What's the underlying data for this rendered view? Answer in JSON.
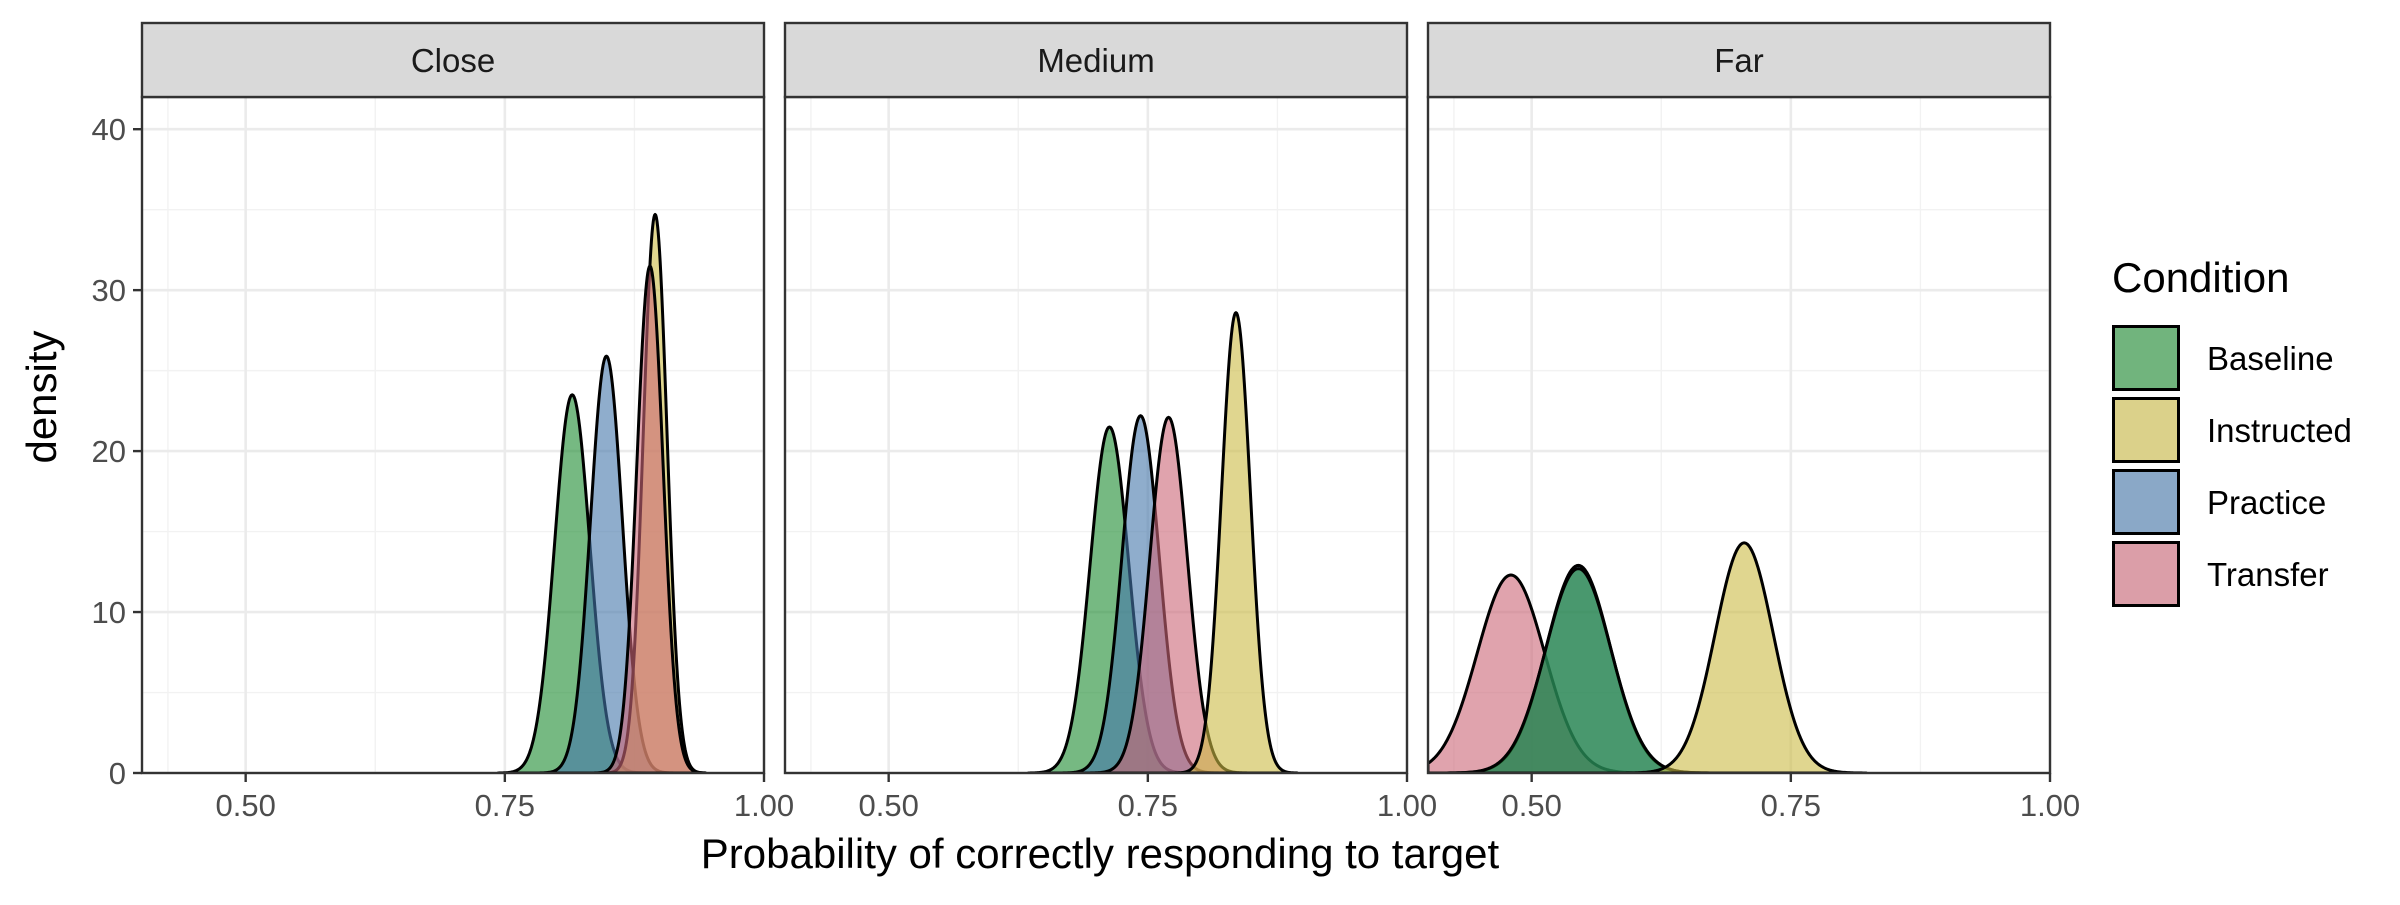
{
  "chart_data": {
    "type": "area",
    "subtype": "faceted density plot",
    "xlabel": "Probability of correctly responding to target",
    "ylabel": "density",
    "xlim": [
      0.4,
      1.0
    ],
    "ylim": [
      0,
      42
    ],
    "x_ticks": [
      0.5,
      0.75,
      1.0
    ],
    "x_tick_labels": [
      "0.50",
      "0.75",
      "1.00"
    ],
    "y_ticks": [
      0,
      10,
      20,
      30,
      40
    ],
    "y_tick_labels": [
      "0",
      "10",
      "20",
      "30",
      "40"
    ],
    "grid": true,
    "fill_opacity": 0.6,
    "legend": {
      "title": "Condition",
      "position": "right",
      "entries": [
        {
          "name": "Baseline",
          "color": "#1b8a2e"
        },
        {
          "name": "Instructed",
          "color": "#ccbb44"
        },
        {
          "name": "Practice",
          "color": "#4477aa"
        },
        {
          "name": "Transfer",
          "color": "#cc6677"
        }
      ]
    },
    "panels": [
      {
        "label": "Close",
        "series": [
          {
            "name": "Baseline",
            "peak_x": 0.815,
            "peak_density": 23.5,
            "sd": 0.017
          },
          {
            "name": "Practice",
            "peak_x": 0.848,
            "peak_density": 25.9,
            "sd": 0.0154
          },
          {
            "name": "Instructed",
            "peak_x": 0.895,
            "peak_density": 34.7,
            "sd": 0.0115
          },
          {
            "name": "Transfer",
            "peak_x": 0.89,
            "peak_density": 31.5,
            "sd": 0.0127
          }
        ]
      },
      {
        "label": "Medium",
        "series": [
          {
            "name": "Baseline",
            "peak_x": 0.713,
            "peak_density": 21.5,
            "sd": 0.0186
          },
          {
            "name": "Practice",
            "peak_x": 0.743,
            "peak_density": 22.2,
            "sd": 0.018
          },
          {
            "name": "Transfer",
            "peak_x": 0.77,
            "peak_density": 22.1,
            "sd": 0.0181
          },
          {
            "name": "Instructed",
            "peak_x": 0.835,
            "peak_density": 28.6,
            "sd": 0.014
          }
        ]
      },
      {
        "label": "Far",
        "series": [
          {
            "name": "Transfer",
            "peak_x": 0.48,
            "peak_density": 12.3,
            "sd": 0.0325
          },
          {
            "name": "Practice",
            "peak_x": 0.545,
            "peak_density": 12.9,
            "sd": 0.031
          },
          {
            "name": "Baseline",
            "peak_x": 0.545,
            "peak_density": 12.7,
            "sd": 0.0314
          },
          {
            "name": "Instructed",
            "peak_x": 0.705,
            "peak_density": 14.3,
            "sd": 0.028
          }
        ]
      }
    ]
  }
}
